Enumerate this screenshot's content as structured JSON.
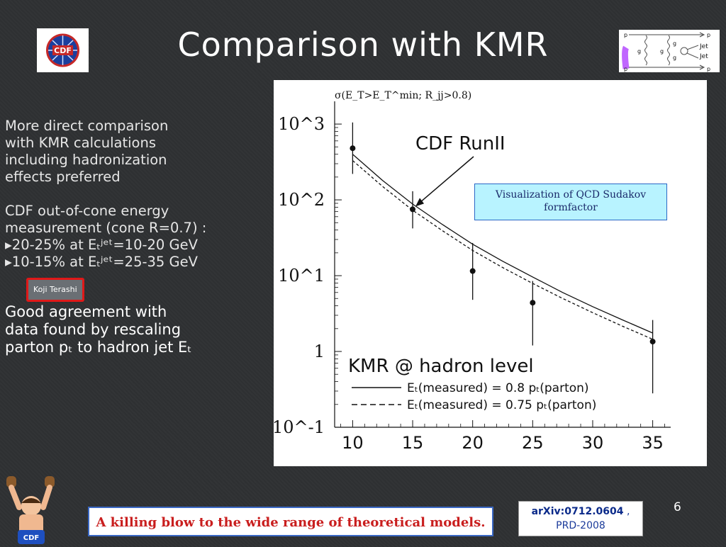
{
  "title": "Comparison with KMR",
  "left_text": {
    "para1": [
      "More direct comparison",
      "with KMR calculations",
      "including hadronization",
      "effects preferred"
    ],
    "para2": [
      "CDF out-of-cone energy",
      "measurement (cone R=0.7) :",
      "▸20-25% at Eₜʲᵉᵗ=10-20 GeV",
      "▸10-15% at Eₜʲᵉᵗ=25-35 GeV"
    ],
    "tag": "Koji Terashi",
    "para3": [
      "Good agreement with",
      "data found by rescaling",
      "parton pₜ to hadron jet Eₜ"
    ]
  },
  "diagram": {
    "labels": [
      "p",
      "p",
      "p",
      "p",
      "g",
      "g",
      "g",
      "g",
      "Jet",
      "Jet"
    ]
  },
  "chart_data": {
    "type": "scatter",
    "title": "σ(E_T>E_T^min; R_jj>0.8)",
    "x_ticks": [
      "10",
      "15",
      "20",
      "25",
      "30",
      "35"
    ],
    "y_ticks": [
      "10^3",
      "10^2",
      "10^1",
      "1",
      "10^-1"
    ],
    "xlim": [
      8.5,
      36.5
    ],
    "ylim_log10": [
      -1,
      3.3
    ],
    "points": [
      {
        "x": 10,
        "y": 480,
        "ylo": 220,
        "yhi": 1050
      },
      {
        "x": 15,
        "y": 75,
        "ylo": 42,
        "yhi": 130
      },
      {
        "x": 20,
        "y": 11.5,
        "ylo": 4.8,
        "yhi": 27
      },
      {
        "x": 25,
        "y": 4.4,
        "ylo": 1.2,
        "yhi": 8.5
      },
      {
        "x": 35,
        "y": 1.35,
        "ylo": 0.28,
        "yhi": 2.6
      }
    ],
    "series": [
      {
        "name": "Eₜ(measured) = 0.8 pₜ(parton)",
        "style": "solid",
        "x": [
          10,
          12.5,
          15,
          17.5,
          20,
          22.5,
          25,
          27.5,
          30,
          32.5,
          35
        ],
        "y": [
          400,
          180,
          88,
          47,
          26,
          15.5,
          9.6,
          6.0,
          3.9,
          2.6,
          1.75
        ]
      },
      {
        "name": "Eₜ(measured) = 0.75 pₜ(parton)",
        "style": "dashed",
        "x": [
          10,
          12.5,
          15,
          17.5,
          20,
          22.5,
          25,
          27.5,
          30,
          32.5,
          35
        ],
        "y": [
          330,
          150,
          73,
          39,
          21.5,
          12.8,
          7.9,
          5.0,
          3.25,
          2.15,
          1.45
        ]
      }
    ],
    "annotation": "CDF RunII",
    "legend_title": "KMR @ hadron level"
  },
  "sudakov_label": "Visualization of QCD Sudakov formfactor",
  "footer": {
    "banner": "A killing blow to the wide range of theoretical models.",
    "ref_bold": "arXiv:0712.0604",
    "ref_rest": " ,",
    "ref_line2": "PRD-2008",
    "page_number": "6"
  }
}
